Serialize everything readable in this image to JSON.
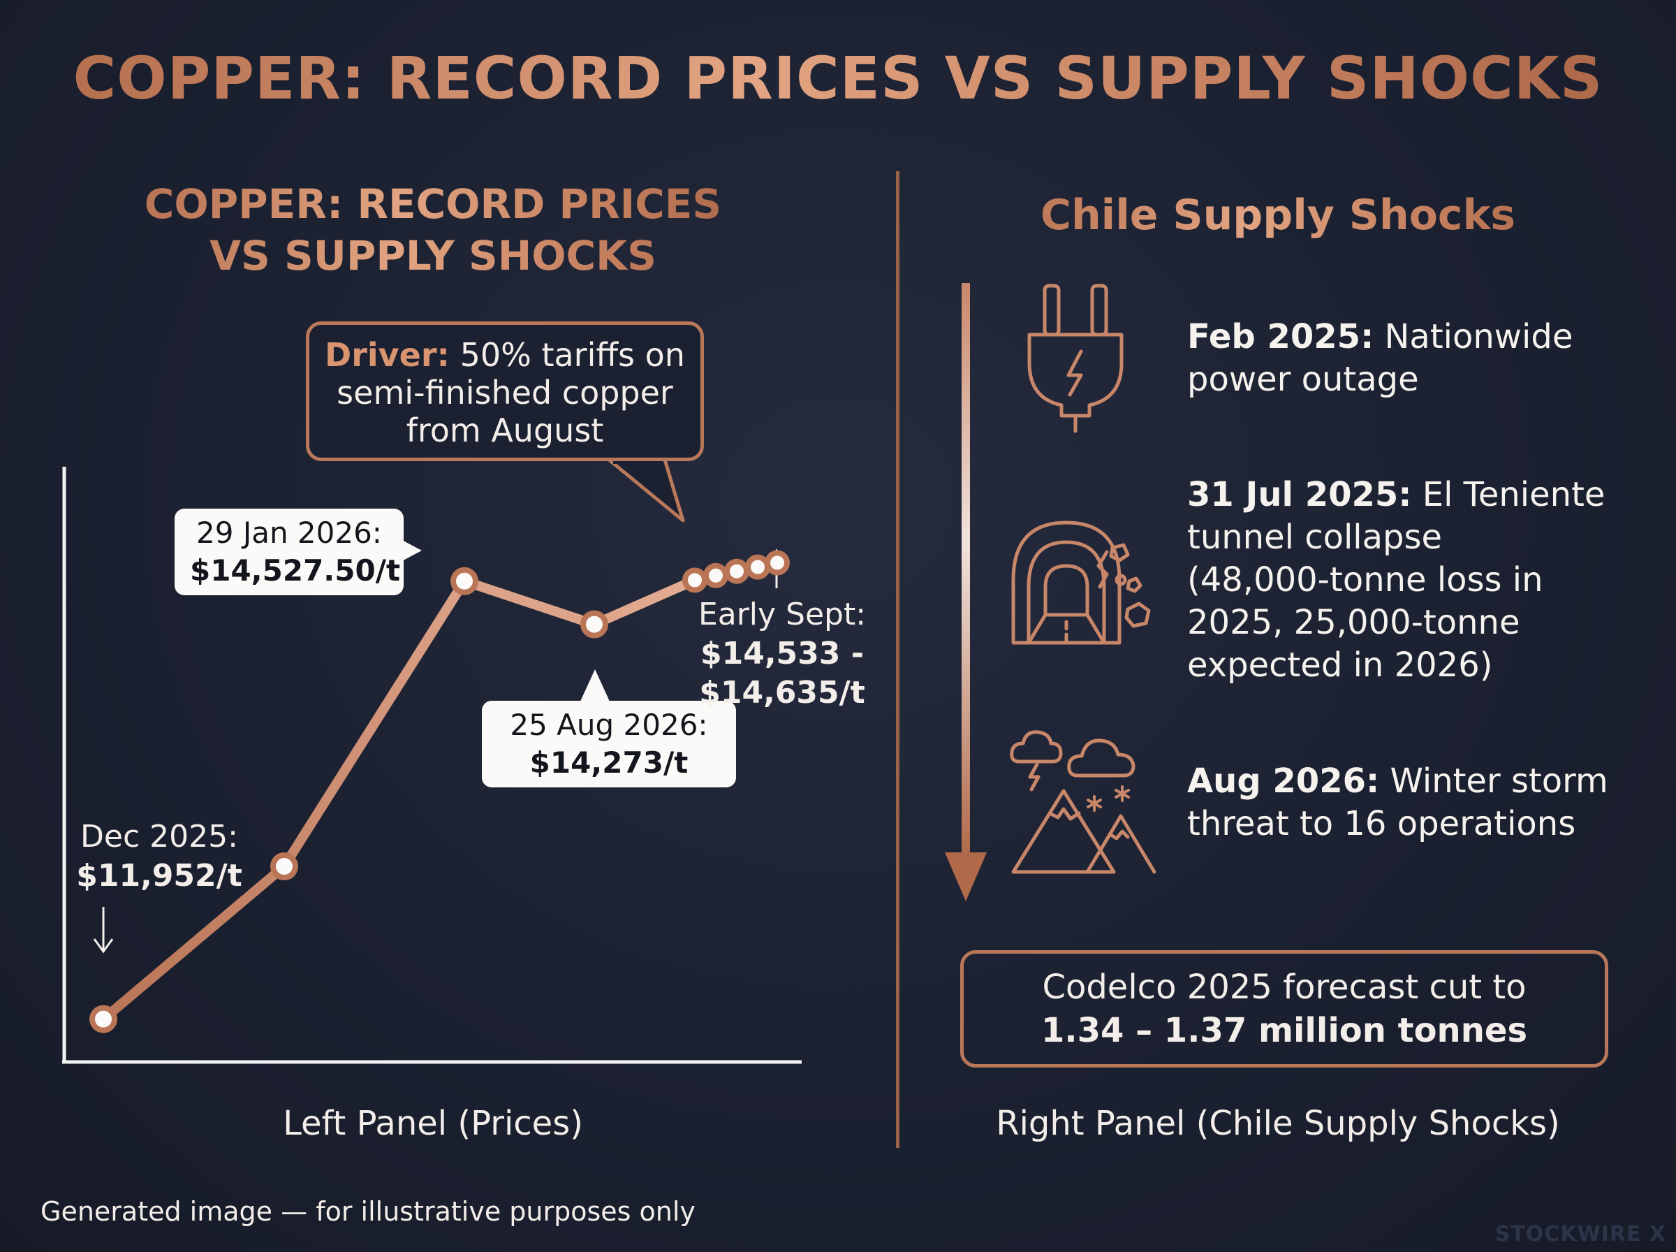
{
  "title": "COPPER: RECORD PRICES VS SUPPLY SHOCKS",
  "left_panel": {
    "title_line1": "COPPER: RECORD PRICES",
    "title_line2": "VS SUPPLY SHOCKS",
    "caption": "Left Panel (Prices)",
    "driver": {
      "label": "Driver:",
      "text1": " 50% tariffs on",
      "text2": "semi-finished copper",
      "text3": "from August"
    },
    "labels": {
      "dec2025_date": "Dec 2025:",
      "dec2025_value": "$11,952/t",
      "jan2026_date": "29 Jan 2026:",
      "jan2026_value": "$14,527.50/t",
      "aug2026_date": "25 Aug 2026:",
      "aug2026_value": "$14,273/t",
      "sept_date": "Early Sept:",
      "sept_value1": "$14,533 -",
      "sept_value2": "$14,635/t"
    }
  },
  "chart_data": {
    "type": "line",
    "title": "COPPER: RECORD PRICES VS SUPPLY SHOCKS",
    "xlabel": "",
    "ylabel": "",
    "grid": false,
    "ylim": [
      11700,
      15200
    ],
    "series": [
      {
        "values": [
          11952,
          12850,
          14527.5,
          14273,
          14533,
          14560,
          14585,
          14610,
          14635
        ]
      }
    ],
    "x": [
      "Dec 2025",
      "",
      "29 Jan 2026",
      "25 Aug 2026",
      "Early Sept",
      "Early Sept",
      "Early Sept",
      "Early Sept",
      "Early Sept"
    ],
    "annotations": [
      {
        "point": 0,
        "text": "Dec 2025: $11,952/t"
      },
      {
        "point": 2,
        "text": "29 Jan 2026: $14,527.50/t"
      },
      {
        "point": 3,
        "text": "25 Aug 2026: $14,273/t"
      },
      {
        "point": 4,
        "text": "Early Sept: $14,533 - $14,635/t"
      }
    ]
  },
  "right_panel": {
    "title": "Chile Supply Shocks",
    "caption": "Right Panel (Chile Supply Shocks)",
    "events": [
      {
        "date": "Feb 2025:",
        "line1": " Nationwide",
        "line2": "power outage",
        "icon": "power-plug-icon"
      },
      {
        "date": "31 Jul 2025:",
        "line1": " El Teniente",
        "line2": "tunnel collapse",
        "line3": "(48,000-tonne loss in",
        "line4": "2025, 25,000-tonne",
        "line5": "expected in 2026)",
        "icon": "tunnel-collapse-icon"
      },
      {
        "date": "Aug 2026:",
        "line1": " Winter storm",
        "line2": "threat to 16 operations",
        "icon": "storm-mountain-icon"
      }
    ],
    "forecast_line1": "Codelco 2025 forecast cut to",
    "forecast_line2": "1.34 – 1.37 million tonnes"
  },
  "footer": {
    "disclaimer": "Generated image — for illustrative purposes only",
    "brand": "STOCKWIRE X"
  },
  "colors": {
    "background": "#1b2030",
    "copper": "#c9876a",
    "line": "#d9a088",
    "callout": "#fbfaf8"
  }
}
